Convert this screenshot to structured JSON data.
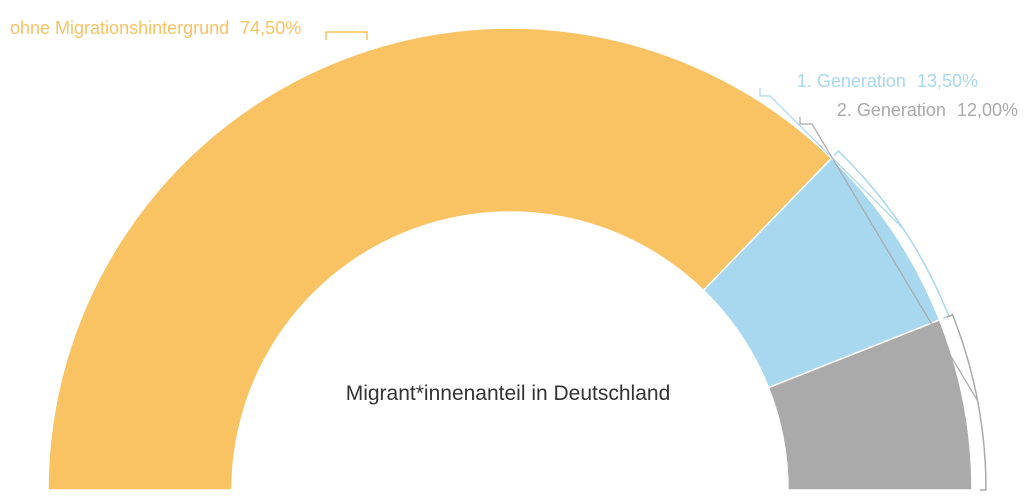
{
  "chart_data": {
    "type": "pie",
    "variant": "semi-donut",
    "title": "Migrant*innenanteil in Deutschland",
    "categories": [
      "ohne Migrationshintergrund",
      "1. Generation",
      "2. Generation"
    ],
    "values": [
      74.5,
      13.5,
      12.0
    ],
    "value_labels": [
      "74,50%",
      "13,50%",
      "12,00%"
    ],
    "colors": [
      "#F9C263",
      "#A8D7F0",
      "#AAAAAA"
    ],
    "legend": "none"
  }
}
